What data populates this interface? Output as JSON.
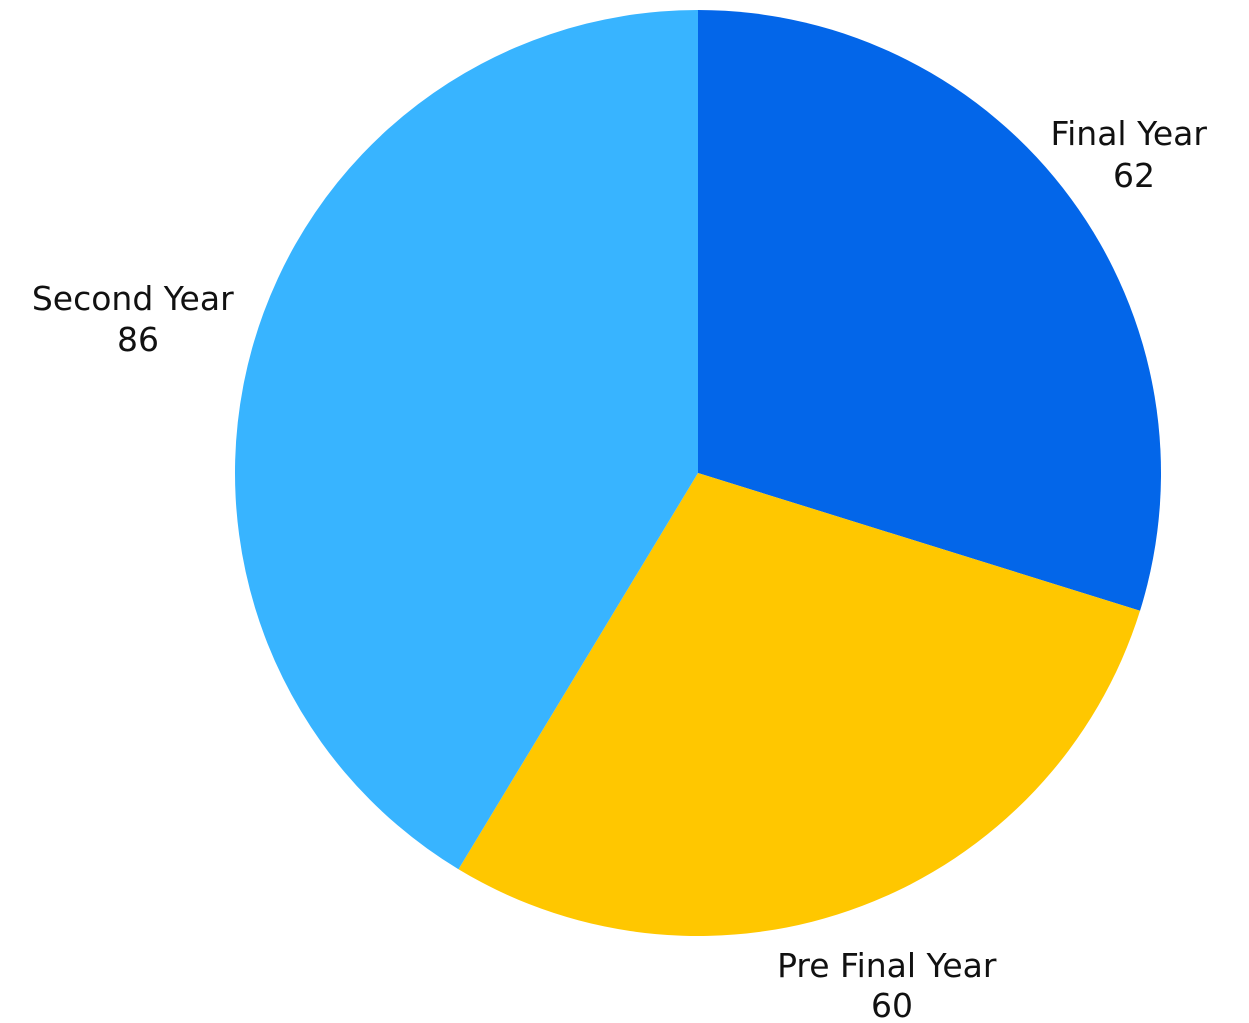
{
  "chart_data": {
    "type": "pie",
    "title": "",
    "start_angle_deg": 0,
    "direction": "clockwise",
    "legend": "none",
    "slices": [
      {
        "label": "Final Year",
        "value": 62,
        "color": "#0366E9"
      },
      {
        "label": "Pre Final Year",
        "value": 60,
        "color": "#FFC700"
      },
      {
        "label": "Second Year",
        "value": 86,
        "color": "#38B4FF"
      }
    ],
    "data_labels": [
      {
        "name": "Final Year",
        "value": "62"
      },
      {
        "name": "Pre Final Year",
        "value": "60"
      },
      {
        "name": "Second Year",
        "value": "86"
      }
    ]
  }
}
